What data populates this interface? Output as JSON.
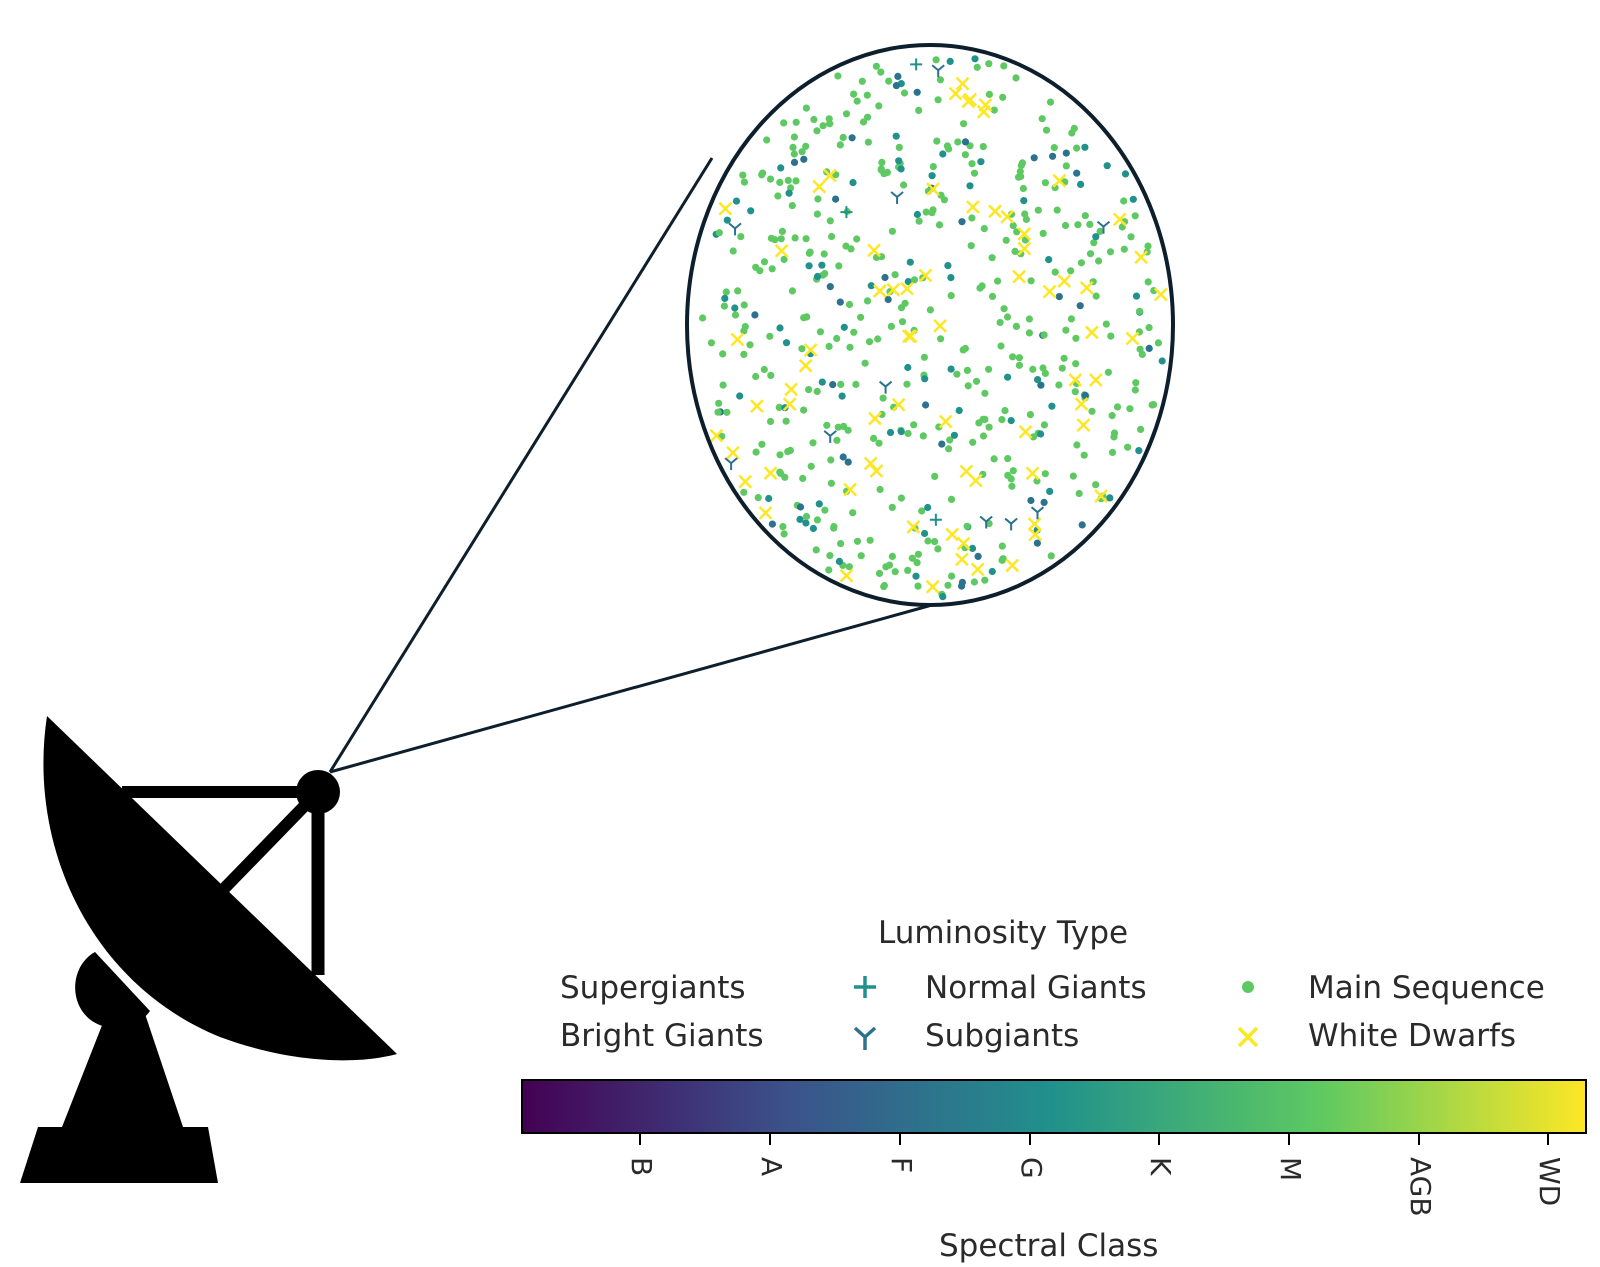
{
  "legend": {
    "title": "Luminosity Type",
    "entries": [
      {
        "label": "Supergiants",
        "marker": "none"
      },
      {
        "label": "Bright Giants",
        "marker": "none"
      },
      {
        "label": "Normal Giants",
        "marker": "plus-icon",
        "color": "#21918c"
      },
      {
        "label": "Subgiants",
        "marker": "tri-down-icon",
        "color": "#2c728e"
      },
      {
        "label": "Main Sequence",
        "marker": "dot-icon",
        "color": "#5ec962"
      },
      {
        "label": "White Dwarfs",
        "marker": "x-icon",
        "color": "#fde725"
      }
    ]
  },
  "colorbar": {
    "colormap": "viridis",
    "colors": [
      "#440154",
      "#3b528b",
      "#21918c",
      "#5ec962",
      "#fde725"
    ],
    "ticks": [
      "B",
      "A",
      "F",
      "G",
      "K",
      "M",
      "AGB",
      "WD"
    ],
    "xlabel": "Spectral Class"
  },
  "colors": {
    "outline": "#0d1f2d",
    "silhouette": "#000000",
    "green": "#5ec962",
    "teal": "#21918c",
    "blue": "#2c728e",
    "yellow": "#fde725"
  }
}
